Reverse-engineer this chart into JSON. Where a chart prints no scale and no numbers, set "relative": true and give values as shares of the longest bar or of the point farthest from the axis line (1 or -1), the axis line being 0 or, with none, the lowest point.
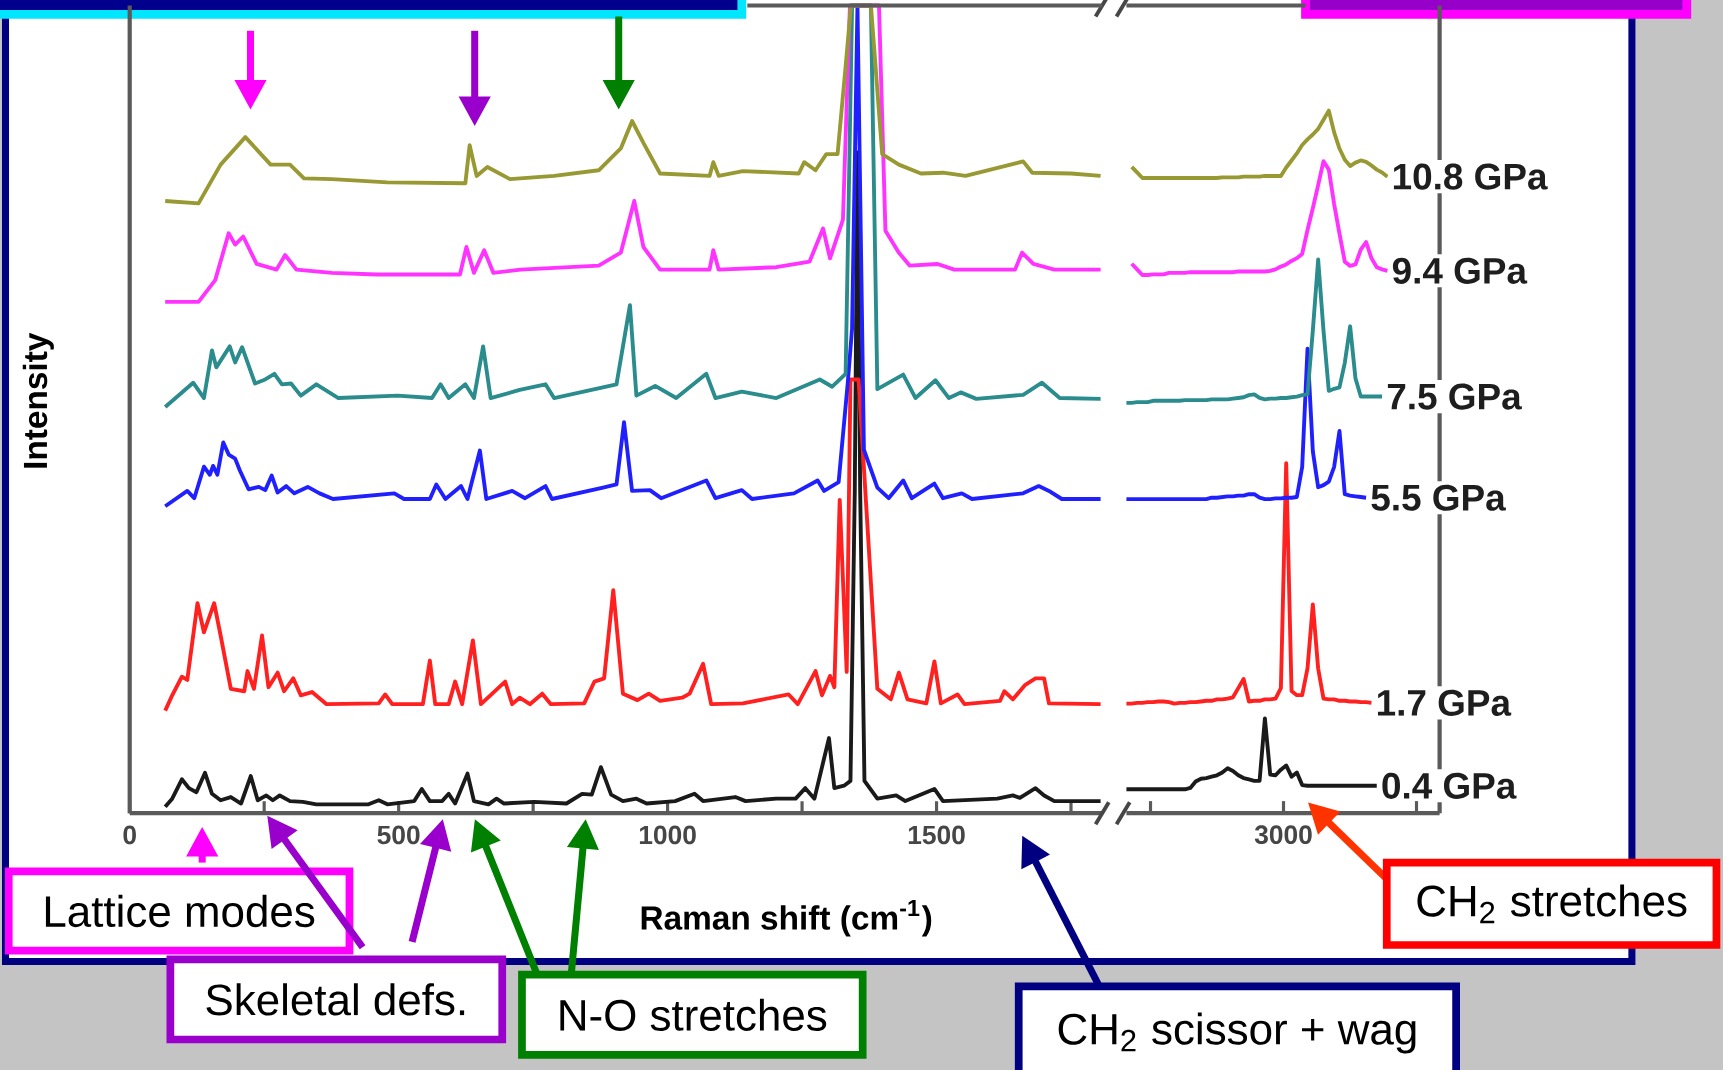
{
  "chart_data": [
    {
      "type": "line",
      "xlabel": "Raman shift (cm$^{-1}$)",
      "ylabel": "Intensity",
      "relative": true,
      "xlim": [
        0,
        1808
      ],
      "xticks": [
        0,
        {
          "value": 250,
          "label": null
        },
        500,
        {
          "value": 750,
          "label": null
        },
        1000,
        {
          "value": 1250,
          "label": null
        },
        1500,
        {
          "value": 1750,
          "label": null
        }
      ],
      "annotations": [
        "Lattice modes",
        "Skeletal defs.",
        "N-O stretches",
        "CH$_{2}$ scissor + wag"
      ],
      "series": [
        {
          "color": "#1a1a1a",
          "x": [
            66,
            79,
            97,
            110,
            124,
            140,
            153,
            169,
            188,
            207,
            225,
            238,
            254,
            266,
            279,
            298,
            322,
            347,
            444,
            463,
            479,
            529,
            543,
            558,
            581,
            593,
            605,
            628,
            640,
            667,
            682,
            696,
            752,
            812,
            841,
            859,
            876,
            895,
            917,
            942,
            961,
            1014,
            1050,
            1066,
            1126,
            1145,
            1202,
            1238,
            1256,
            1273,
            1300,
            1310,
            1328,
            1340,
            1348,
            1353,
            1358,
            1366,
            1390,
            1425,
            1442,
            1496,
            1512,
            1613,
            1642,
            1655,
            1684,
            1700,
            1719,
            1805
          ],
          "values": [
            0.008,
            0.018,
            0.042,
            0.031,
            0.026,
            0.05,
            0.024,
            0.016,
            0.02,
            0.012,
            0.046,
            0.016,
            0.022,
            0.016,
            0.022,
            0.015,
            0.014,
            0.011,
            0.011,
            0.016,
            0.011,
            0.015,
            0.03,
            0.015,
            0.015,
            0.024,
            0.012,
            0.049,
            0.015,
            0.011,
            0.018,
            0.012,
            0.014,
            0.012,
            0.024,
            0.023,
            0.057,
            0.023,
            0.015,
            0.018,
            0.012,
            0.015,
            0.024,
            0.015,
            0.02,
            0.015,
            0.018,
            0.018,
            0.031,
            0.018,
            0.093,
            0.031,
            0.034,
            0.04,
            0.4,
            0.818,
            0.4,
            0.04,
            0.018,
            0.022,
            0.015,
            0.03,
            0.015,
            0.018,
            0.022,
            0.019,
            0.031,
            0.022,
            0.015,
            0.015
          ]
        },
        {
          "color": "#ff2020",
          "x": [
            66,
            79,
            97,
            107,
            126,
            138,
            157,
            169,
            188,
            213,
            219,
            231,
            246,
            258,
            275,
            287,
            304,
            318,
            339,
            366,
            463,
            475,
            488,
            545,
            558,
            568,
            593,
            605,
            618,
            638,
            653,
            698,
            711,
            725,
            744,
            767,
            783,
            845,
            864,
            882,
            899,
            917,
            944,
            965,
            986,
            1027,
            1041,
            1066,
            1081,
            1140,
            1225,
            1242,
            1275,
            1287,
            1302,
            1310,
            1320,
            1333,
            1340,
            1355,
            1390,
            1415,
            1430,
            1446,
            1481,
            1496,
            1508,
            1539,
            1552,
            1618,
            1626,
            1642,
            1665,
            1684,
            1700,
            1709,
            1805
          ],
          "values": [
            0.127,
            0.146,
            0.169,
            0.165,
            0.26,
            0.224,
            0.26,
            0.22,
            0.154,
            0.151,
            0.176,
            0.154,
            0.22,
            0.156,
            0.174,
            0.151,
            0.167,
            0.146,
            0.15,
            0.135,
            0.136,
            0.147,
            0.135,
            0.135,
            0.189,
            0.135,
            0.135,
            0.163,
            0.135,
            0.214,
            0.135,
            0.163,
            0.135,
            0.143,
            0.135,
            0.148,
            0.135,
            0.136,
            0.163,
            0.167,
            0.276,
            0.148,
            0.14,
            0.148,
            0.139,
            0.143,
            0.148,
            0.185,
            0.135,
            0.136,
            0.147,
            0.135,
            0.176,
            0.146,
            0.17,
            0.156,
            0.388,
            0.175,
            0.537,
            0.537,
            0.154,
            0.141,
            0.174,
            0.141,
            0.136,
            0.188,
            0.136,
            0.147,
            0.135,
            0.139,
            0.151,
            0.141,
            0.159,
            0.167,
            0.167,
            0.136,
            0.135
          ]
        },
        {
          "color": "#2020ff",
          "x": [
            66,
            107,
            120,
            138,
            149,
            155,
            163,
            174,
            184,
            196,
            205,
            221,
            240,
            252,
            264,
            275,
            291,
            306,
            331,
            353,
            378,
            492,
            510,
            558,
            570,
            587,
            616,
            628,
            651,
            663,
            711,
            735,
            773,
            785,
            880,
            905,
            919,
            934,
            967,
            988,
            1072,
            1089,
            1138,
            1157,
            1235,
            1279,
            1291,
            1318,
            1335,
            1343,
            1353,
            1365,
            1390,
            1411,
            1438,
            1454,
            1496,
            1512,
            1547,
            1566,
            1661,
            1690,
            1709,
            1733,
            1805
          ],
          "values": [
            0.38,
            0.399,
            0.39,
            0.429,
            0.419,
            0.43,
            0.419,
            0.459,
            0.444,
            0.439,
            0.424,
            0.401,
            0.404,
            0.4,
            0.418,
            0.397,
            0.405,
            0.396,
            0.404,
            0.396,
            0.389,
            0.396,
            0.389,
            0.389,
            0.407,
            0.389,
            0.405,
            0.389,
            0.449,
            0.389,
            0.399,
            0.39,
            0.405,
            0.389,
            0.403,
            0.407,
            0.484,
            0.399,
            0.4,
            0.39,
            0.412,
            0.39,
            0.4,
            0.389,
            0.396,
            0.412,
            0.399,
            0.41,
            0.533,
            0.6,
            1.0,
            0.45,
            0.403,
            0.39,
            0.412,
            0.39,
            0.408,
            0.39,
            0.396,
            0.389,
            0.396,
            0.405,
            0.399,
            0.389,
            0.389
          ]
        },
        {
          "color": "#2a8c8c",
          "x": [
            66,
            118,
            138,
            153,
            161,
            186,
            196,
            209,
            233,
            252,
            269,
            283,
            300,
            318,
            347,
            388,
            498,
            562,
            578,
            593,
            624,
            640,
            657,
            671,
            725,
            773,
            789,
            905,
            930,
            942,
            977,
            1016,
            1072,
            1089,
            1138,
            1202,
            1283,
            1306,
            1331,
            1343,
            1378,
            1390,
            1438,
            1461,
            1498,
            1523,
            1545,
            1574,
            1661,
            1696,
            1729,
            1805
          ],
          "values": [
            0.503,
            0.533,
            0.514,
            0.573,
            0.552,
            0.578,
            0.558,
            0.577,
            0.532,
            0.537,
            0.544,
            0.531,
            0.532,
            0.517,
            0.531,
            0.514,
            0.517,
            0.514,
            0.531,
            0.514,
            0.531,
            0.514,
            0.578,
            0.514,
            0.524,
            0.531,
            0.514,
            0.531,
            0.629,
            0.517,
            0.529,
            0.514,
            0.544,
            0.514,
            0.522,
            0.514,
            0.537,
            0.528,
            0.544,
            1.0,
            1.0,
            0.525,
            0.543,
            0.514,
            0.536,
            0.514,
            0.521,
            0.513,
            0.518,
            0.533,
            0.514,
            0.513
          ]
        },
        {
          "color": "#ff33ff",
          "x": [
            66,
            128,
            159,
            184,
            196,
            211,
            236,
            273,
            289,
            310,
            376,
            459,
            614,
            626,
            640,
            659,
            676,
            727,
            872,
            913,
            938,
            955,
            986,
            1078,
            1085,
            1095,
            1202,
            1264,
            1289,
            1302,
            1326,
            1339,
            1393,
            1405,
            1430,
            1450,
            1502,
            1533,
            1646,
            1659,
            1680,
            1719,
            1805
          ],
          "values": [
            0.633,
            0.633,
            0.66,
            0.718,
            0.704,
            0.714,
            0.68,
            0.673,
            0.691,
            0.673,
            0.669,
            0.667,
            0.667,
            0.701,
            0.669,
            0.697,
            0.669,
            0.673,
            0.678,
            0.694,
            0.758,
            0.701,
            0.673,
            0.673,
            0.697,
            0.673,
            0.676,
            0.683,
            0.724,
            0.687,
            0.735,
            1.0,
            1.0,
            0.721,
            0.694,
            0.678,
            0.68,
            0.673,
            0.673,
            0.694,
            0.68,
            0.673,
            0.673
          ]
        },
        {
          "color": "#999933",
          "x": [
            66,
            128,
            169,
            215,
            262,
            298,
            324,
            376,
            479,
            624,
            632,
            645,
            665,
            707,
            789,
            872,
            913,
            934,
            955,
            986,
            1078,
            1085,
            1095,
            1140,
            1244,
            1254,
            1275,
            1295,
            1316,
            1331,
            1341,
            1378,
            1399,
            1430,
            1471,
            1512,
            1554,
            1661,
            1678,
            1750,
            1805
          ],
          "values": [
            0.758,
            0.755,
            0.803,
            0.837,
            0.803,
            0.803,
            0.786,
            0.785,
            0.781,
            0.78,
            0.827,
            0.789,
            0.8,
            0.785,
            0.789,
            0.796,
            0.823,
            0.857,
            0.83,
            0.792,
            0.789,
            0.806,
            0.789,
            0.795,
            0.792,
            0.806,
            0.796,
            0.816,
            0.816,
            0.925,
            1.0,
            1.0,
            0.816,
            0.803,
            0.792,
            0.793,
            0.789,
            0.807,
            0.793,
            0.792,
            0.789
          ]
        }
      ]
    },
    {
      "type": "line",
      "relative": true,
      "categories": [
        null,
        null,
        null,
        null,
        null,
        null,
        null,
        null,
        null,
        null,
        null,
        null,
        null,
        null,
        null,
        null,
        null,
        null,
        null,
        null,
        null,
        null,
        null,
        null,
        null,
        null,
        null,
        null,
        null,
        null,
        null,
        null,
        null,
        null,
        null,
        null,
        null,
        null,
        null,
        null,
        null,
        null,
        null,
        null,
        null,
        null,
        null,
        null,
        null,
        null,
        null,
        null
      ],
      "annotations": [
        "CH$_{2}$ stretches",
        "3000"
      ],
      "series": [
        {
          "name": "0.4 GPa",
          "color": "#1a1a1a",
          "values": [
            0.034,
            0.034,
            0.034,
            0.034,
            0.034,
            0.034,
            0.034,
            0.034,
            0.034,
            0.034,
            0.034,
            0.034,
            0.036,
            0.045,
            0.049,
            0.05,
            0.052,
            0.054,
            0.058,
            0.064,
            0.06,
            0.054,
            0.05,
            0.048,
            0.046,
            0.046,
            0.135,
            0.055,
            0.054,
            0.062,
            0.068,
            0.052,
            0.058,
            0.04,
            0.039,
            0.039,
            0.039,
            0.039,
            0.039,
            0.039,
            0.039,
            0.039,
            0.039,
            0.039,
            0.039,
            0.039,
            0.039,
            0.039,
            null,
            null,
            null,
            null
          ]
        },
        {
          "name": "1.7 GPa",
          "color": "#ff2020",
          "values": [
            0.156,
            0.156,
            0.157,
            0.157,
            0.158,
            0.158,
            0.159,
            0.159,
            0.158,
            0.156,
            0.157,
            0.157,
            0.158,
            0.158,
            0.159,
            0.16,
            0.16,
            0.162,
            0.162,
            0.163,
            0.165,
            0.178,
            0.191,
            0.159,
            0.16,
            0.16,
            0.162,
            0.162,
            0.163,
            0.178,
            0.498,
            0.174,
            0.168,
            0.168,
            0.206,
            0.297,
            0.206,
            0.163,
            0.162,
            0.162,
            0.16,
            0.16,
            0.159,
            0.159,
            0.158,
            0.158,
            0.157,
            null,
            null,
            null,
            null,
            null
          ]
        },
        {
          "name": "5.5 GPa",
          "color": "#2020ff",
          "values": [
            0.447,
            0.447,
            0.447,
            0.447,
            0.447,
            0.447,
            0.447,
            0.447,
            0.447,
            0.447,
            0.447,
            0.447,
            0.447,
            0.447,
            0.447,
            0.447,
            0.449,
            0.449,
            0.45,
            0.451,
            0.451,
            0.452,
            0.452,
            0.454,
            0.454,
            0.449,
            0.447,
            0.447,
            0.448,
            0.448,
            0.449,
            0.449,
            0.45,
            0.493,
            0.661,
            0.515,
            0.464,
            0.467,
            0.472,
            0.493,
            0.544,
            0.454,
            0.452,
            0.451,
            0.45,
            0.449,
            null,
            null,
            null,
            null,
            null,
            null
          ]
        },
        {
          "name": "7.5 GPa",
          "color": "#2a8c8c",
          "values": [
            0.584,
            0.584,
            0.585,
            0.585,
            0.585,
            0.587,
            0.587,
            0.587,
            0.587,
            0.587,
            0.587,
            0.588,
            0.588,
            0.588,
            0.588,
            0.588,
            0.589,
            0.589,
            0.589,
            0.589,
            0.59,
            0.591,
            0.592,
            0.595,
            0.596,
            0.591,
            0.589,
            0.59,
            0.59,
            0.591,
            0.591,
            0.592,
            0.593,
            0.595,
            0.596,
            0.687,
            0.788,
            0.687,
            0.601,
            0.604,
            0.606,
            0.641,
            0.693,
            0.619,
            0.593,
            0.593,
            0.593,
            0.593,
            0.593,
            null,
            null,
            null
          ]
        },
        {
          "name": "9.4 GPa",
          "color": "#ff33ff",
          "values": [
            null,
            0.782,
            0.774,
            0.766,
            0.766,
            0.767,
            0.767,
            0.767,
            0.769,
            0.769,
            0.769,
            0.769,
            0.77,
            0.77,
            0.77,
            0.77,
            0.77,
            0.77,
            0.77,
            0.77,
            0.77,
            0.771,
            0.771,
            0.771,
            0.771,
            0.771,
            0.771,
            0.772,
            0.774,
            0.778,
            0.781,
            0.786,
            0.79,
            0.796,
            0.83,
            0.861,
            0.894,
            0.928,
            0.916,
            0.867,
            0.825,
            0.785,
            0.779,
            0.781,
            0.802,
            0.813,
            0.79,
            0.777,
            0.774,
            0.772,
            null,
            null
          ]
        },
        {
          "name": "10.8 GPa",
          "color": "#999933",
          "values": [
            null,
            0.92,
            0.912,
            0.904,
            0.904,
            0.904,
            0.904,
            0.904,
            0.904,
            0.904,
            0.904,
            0.904,
            0.904,
            0.904,
            0.904,
            0.904,
            0.904,
            0.904,
            0.905,
            0.905,
            0.905,
            0.905,
            0.906,
            0.906,
            0.906,
            0.906,
            0.907,
            0.907,
            0.907,
            0.907,
            0.919,
            0.929,
            0.939,
            0.951,
            0.959,
            0.966,
            0.974,
            0.987,
            1.0,
            0.969,
            0.946,
            0.93,
            0.921,
            0.926,
            0.929,
            0.927,
            0.922,
            0.916,
            0.912,
            0.906,
            null,
            null
          ]
        }
      ]
    }
  ]
}
